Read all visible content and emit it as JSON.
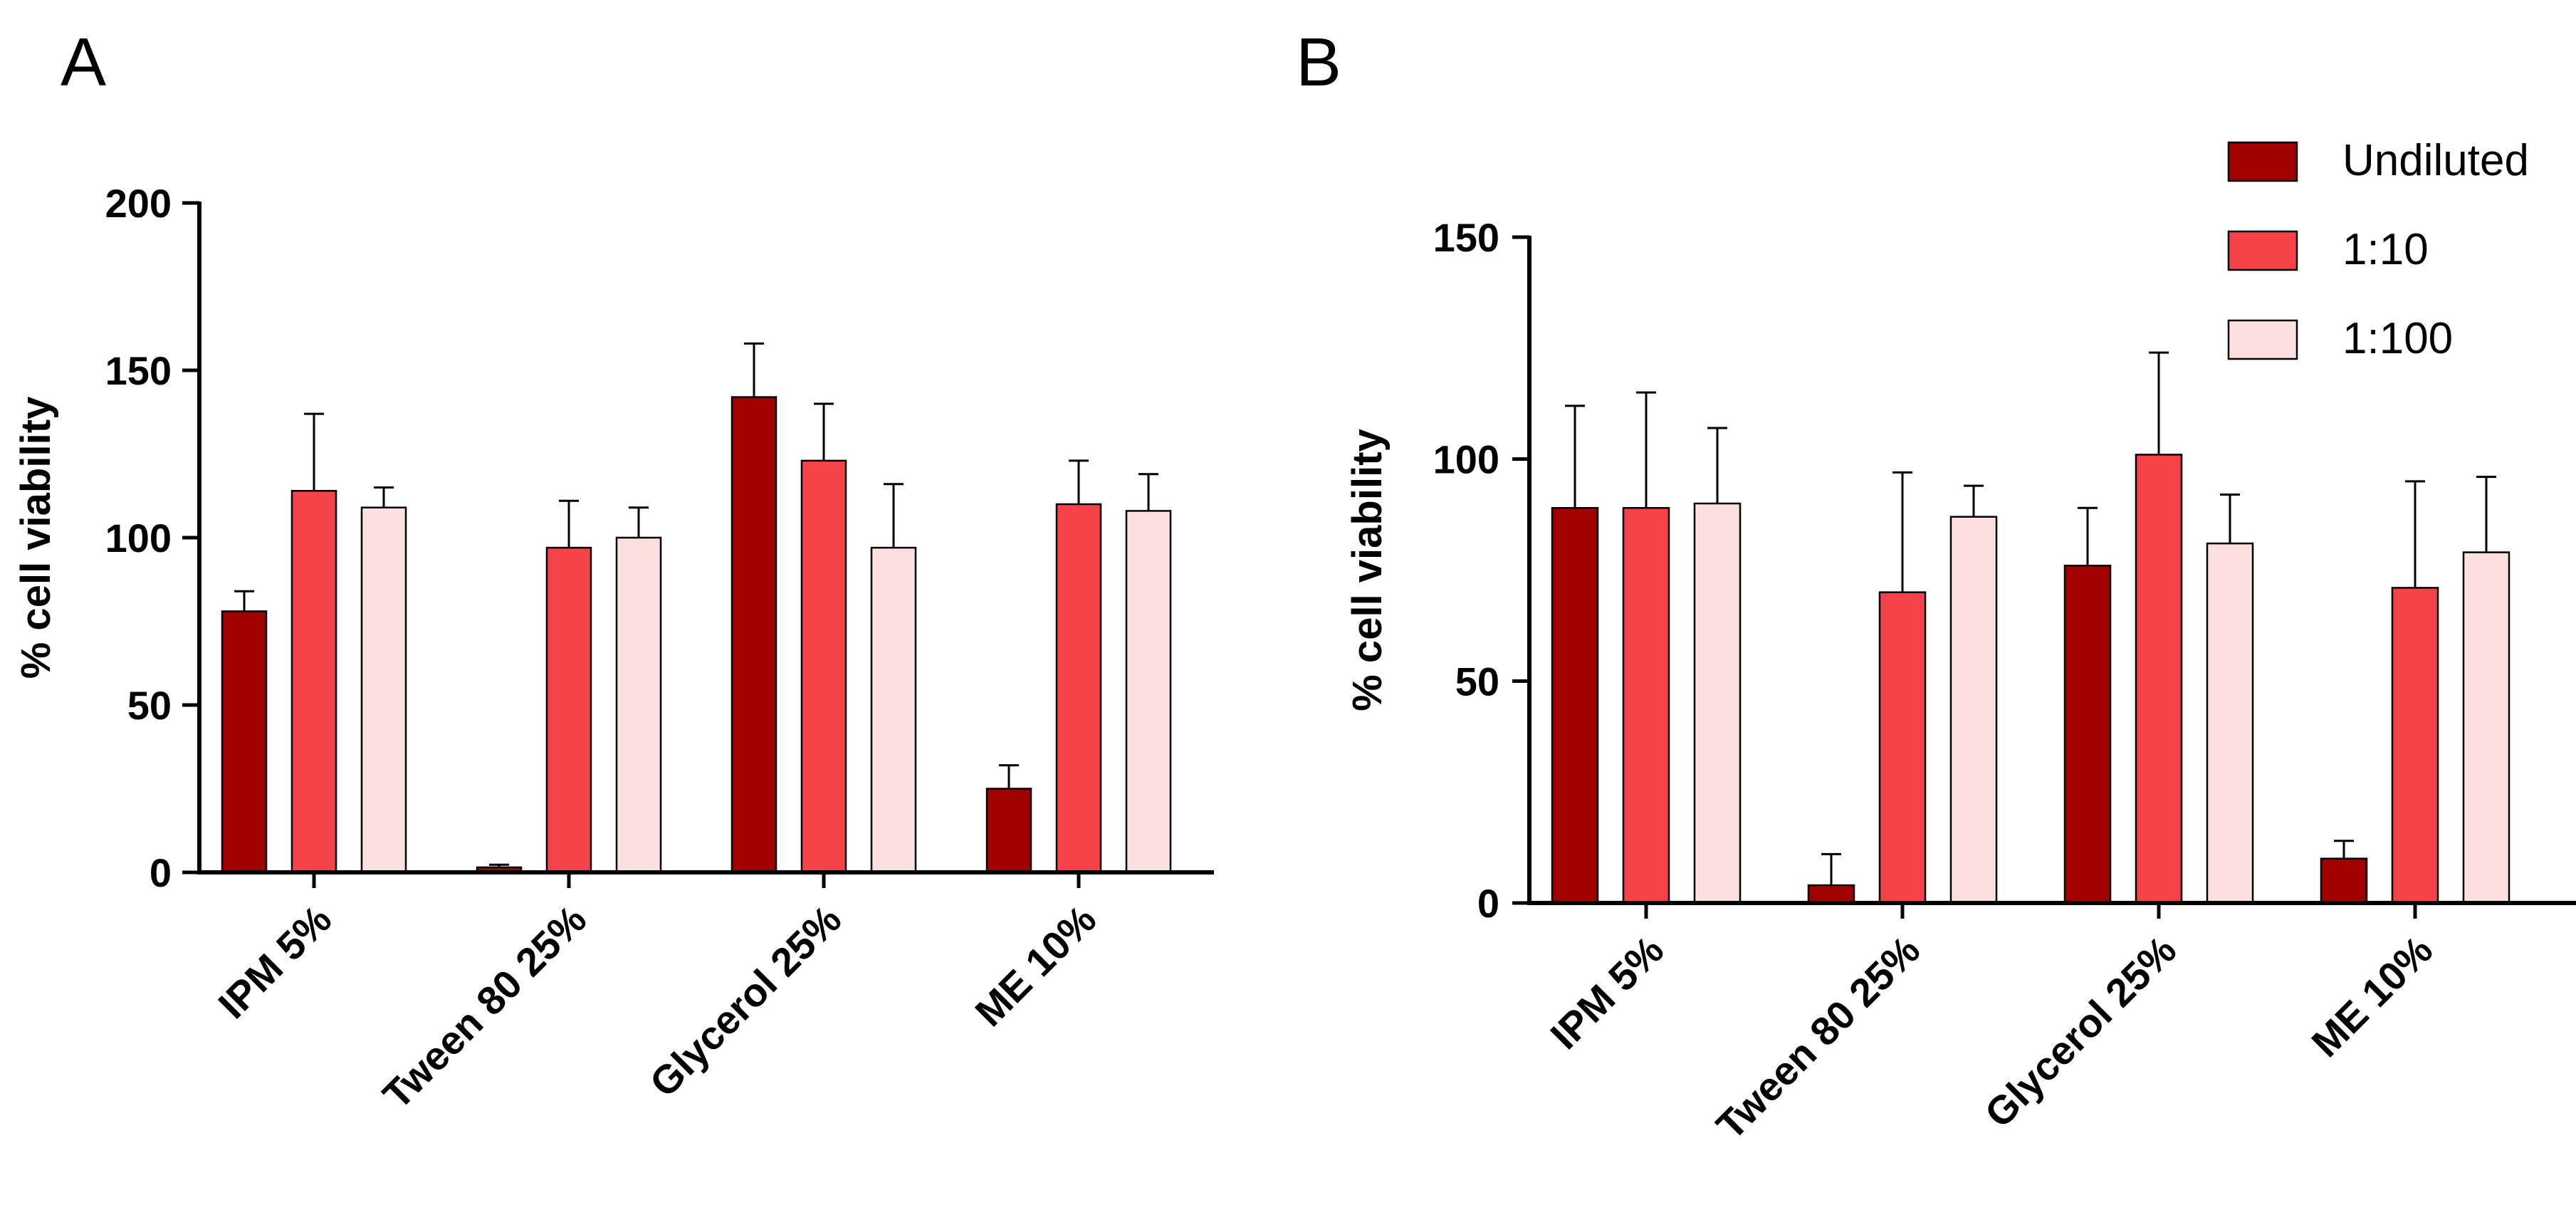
{
  "legend": {
    "entries": [
      {
        "label": "Undiluted",
        "color": "#A00000"
      },
      {
        "label": "1:10",
        "color": "#F6434A"
      },
      {
        "label": "1:100",
        "color": "#FCE0E0"
      }
    ],
    "placement": "top-right"
  },
  "chart_data": [
    {
      "panel": "A",
      "type": "bar",
      "ylabel": "% cell viability",
      "xlabel": "",
      "ylim": [
        0,
        200
      ],
      "yticks": [
        0,
        50,
        100,
        150,
        200
      ],
      "categories": [
        "IPM 5%",
        "Tween 80 25%",
        "Glycerol 25%",
        "ME 10%"
      ],
      "series": [
        {
          "name": "Undiluted",
          "values": [
            78,
            1.5,
            142,
            25
          ],
          "errors": [
            6,
            0.8,
            16,
            7
          ]
        },
        {
          "name": "1:10",
          "values": [
            114,
            97,
            123,
            110
          ],
          "errors": [
            23,
            14,
            17,
            13
          ]
        },
        {
          "name": "1:100",
          "values": [
            109,
            100,
            97,
            108
          ],
          "errors": [
            6,
            9,
            19,
            11
          ]
        }
      ]
    },
    {
      "panel": "B",
      "type": "bar",
      "ylabel": "% cell viability",
      "xlabel": "",
      "ylim": [
        0,
        150
      ],
      "yticks": [
        0,
        50,
        100,
        150
      ],
      "categories": [
        "IPM 5%",
        "Tween 80 25%",
        "Glycerol 25%",
        "ME 10%"
      ],
      "series": [
        {
          "name": "Undiluted",
          "values": [
            89,
            4,
            76,
            10
          ],
          "errors": [
            23,
            7,
            13,
            4
          ]
        },
        {
          "name": "1:10",
          "values": [
            89,
            70,
            101,
            71
          ],
          "errors": [
            26,
            27,
            23,
            24
          ]
        },
        {
          "name": "1:100",
          "values": [
            90,
            87,
            81,
            79
          ],
          "errors": [
            17,
            7,
            11,
            17
          ]
        }
      ]
    }
  ]
}
